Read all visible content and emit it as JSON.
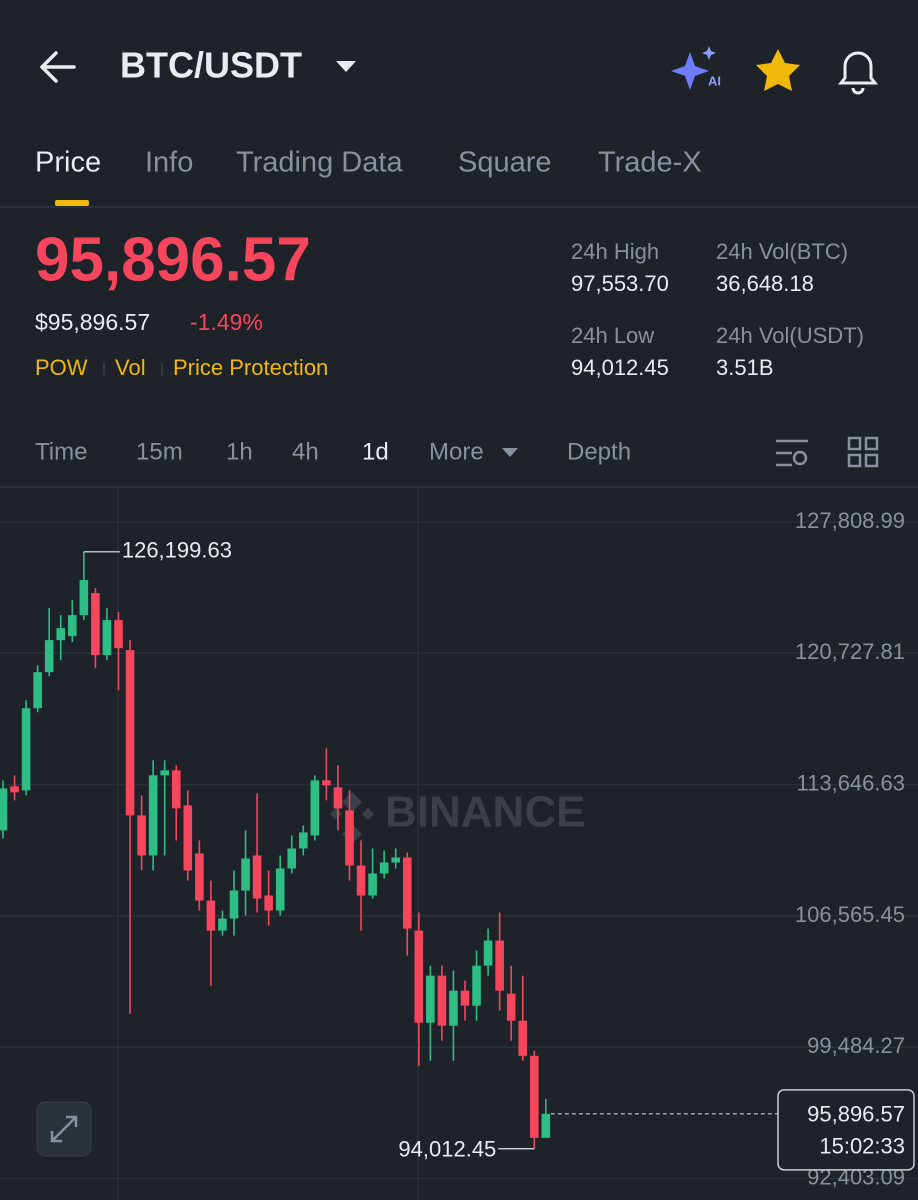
{
  "header": {
    "title": "BTC/USDT"
  },
  "tabs": [
    "Price",
    "Info",
    "Trading Data",
    "Square",
    "Trade-X"
  ],
  "price": {
    "last": "95,896.57",
    "fiat": "$95,896.57",
    "change": "-1.49%",
    "tags": [
      "POW",
      "Vol",
      "Price Protection"
    ]
  },
  "stats": [
    {
      "label": "24h High",
      "value": "97,553.70"
    },
    {
      "label": "24h Vol(BTC)",
      "value": "36,648.18"
    },
    {
      "label": "24h Low",
      "value": "94,012.45"
    },
    {
      "label": "24h Vol(USDT)",
      "value": "3.51B"
    }
  ],
  "intervals": [
    "Time",
    "15m",
    "1h",
    "4h",
    "1d",
    "More",
    "Depth"
  ],
  "chart_data": {
    "type": "candlestick",
    "watermark": "BINANCE",
    "up_color": "#2ebd85",
    "down_color": "#f6465d",
    "grid": true,
    "ylim": [
      91250,
      129640
    ],
    "yticks": [
      {
        "value": 92403.09,
        "label": "92,403.09"
      },
      {
        "value": 99484.27,
        "label": "99,484.27"
      },
      {
        "value": 106565.45,
        "label": "106,565.45"
      },
      {
        "value": 113646.63,
        "label": "113,646.63"
      },
      {
        "value": 120727.81,
        "label": "120,727.81"
      },
      {
        "value": 127808.99,
        "label": "127,808.99"
      }
    ],
    "open": [
      111177,
      113553,
      113337,
      117765,
      119709,
      121437,
      121653,
      122787,
      123975,
      120627,
      122517,
      120897,
      111987,
      109827,
      114147,
      114417,
      112527,
      109935,
      107397,
      105777,
      106425,
      107937,
      109827,
      107667,
      106857,
      109125,
      110205,
      110907,
      113877,
      113499,
      112257,
      109287,
      107667,
      108855,
      109449,
      109719,
      105777,
      100809,
      103347,
      100647,
      102537,
      101727,
      103887,
      105237,
      102375,
      100917,
      99027,
      94600
    ],
    "high": [
      113877,
      114147,
      118197,
      120087,
      123165,
      122787,
      123597,
      126199.63,
      124245,
      123165,
      122949,
      121437,
      113067,
      114957,
      114957,
      114687,
      113337,
      110637,
      108477,
      106857,
      109017,
      111177,
      113175,
      109017,
      109827,
      110907,
      111447,
      114147,
      115605,
      114687,
      113337,
      110637,
      110205,
      110097,
      110205,
      109989,
      106749,
      103887,
      103887,
      103617,
      103077,
      104697,
      105885,
      106749,
      103887,
      103347,
      99297,
      96700
    ],
    "low": [
      110745,
      112797,
      113067,
      117549,
      119493,
      120357,
      121329,
      122517,
      119925,
      120357,
      118737,
      101295,
      109017,
      109017,
      109827,
      110637,
      108477,
      106857,
      102807,
      105507,
      105507,
      106587,
      106749,
      106047,
      106587,
      108855,
      109827,
      110637,
      112797,
      111177,
      108477,
      105777,
      107505,
      108585,
      109125,
      104427,
      98487,
      98757,
      99837,
      98757,
      100917,
      100917,
      103347,
      101457,
      99837,
      98757,
      94012.45,
      94790
    ],
    "close": [
      113445,
      113229,
      117765,
      119709,
      121437,
      122085,
      122787,
      124677,
      120627,
      122517,
      121005,
      111987,
      109827,
      114147,
      114417,
      112365,
      109017,
      107397,
      105777,
      106425,
      107937,
      109665,
      107505,
      106857,
      109125,
      110205,
      111069,
      113877,
      113607,
      112365,
      109287,
      107667,
      108855,
      109449,
      109719,
      105885,
      100809,
      103347,
      100647,
      102537,
      101727,
      103887,
      105237,
      102537,
      100917,
      99027,
      94600,
      95896.57
    ],
    "high_label": {
      "value": 126199.63,
      "label": "126,199.63"
    },
    "low_label": {
      "value": 94012.45,
      "label": "94,012.45"
    },
    "last_price": {
      "value": 95896.57,
      "label": "95,896.57"
    },
    "time": "15:02:33"
  }
}
